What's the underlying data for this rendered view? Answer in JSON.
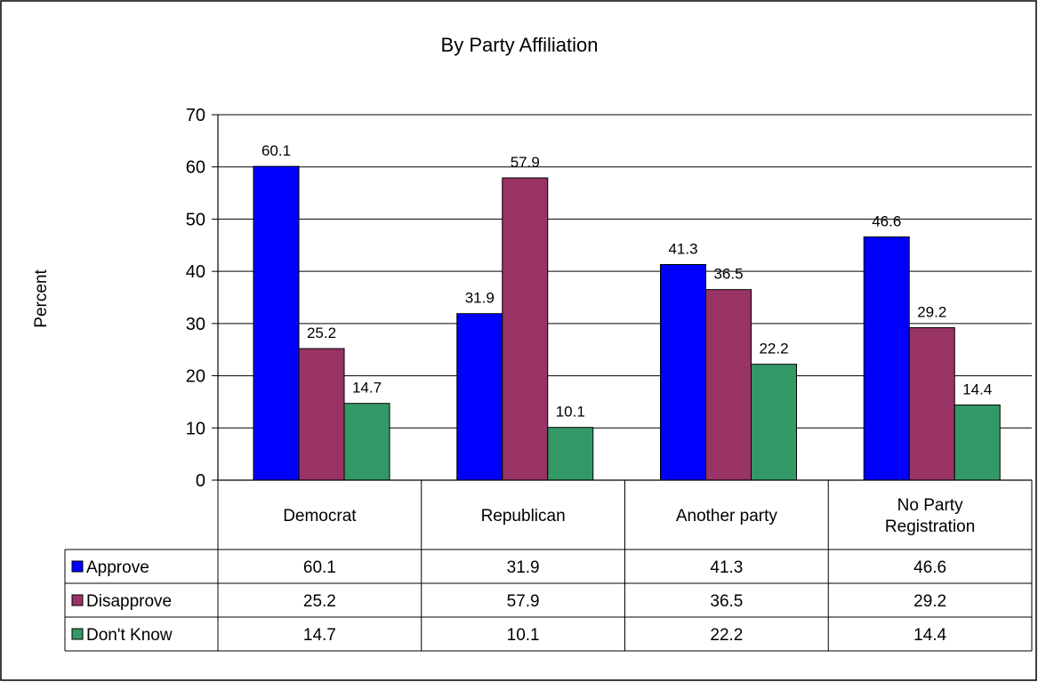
{
  "chart_data": {
    "type": "bar",
    "title": "By Party Affiliation",
    "ylabel": "Percent",
    "xlabel": "",
    "ylim": [
      0,
      70
    ],
    "yticks": [
      0,
      10,
      20,
      30,
      40,
      50,
      60,
      70
    ],
    "grid": true,
    "legend": "data-table-below",
    "categories": [
      [
        "Democrat"
      ],
      [
        "Republican"
      ],
      [
        "Another party"
      ],
      [
        "No Party",
        "Registration"
      ]
    ],
    "series": [
      {
        "name": "Approve",
        "color": "#0000ff",
        "values": [
          60.1,
          31.9,
          41.3,
          46.6
        ]
      },
      {
        "name": "Disapprove",
        "color": "#993366",
        "values": [
          25.2,
          57.9,
          36.5,
          29.2
        ]
      },
      {
        "name": "Don't Know",
        "color": "#339966",
        "values": [
          14.7,
          10.1,
          22.2,
          14.4
        ]
      }
    ]
  }
}
